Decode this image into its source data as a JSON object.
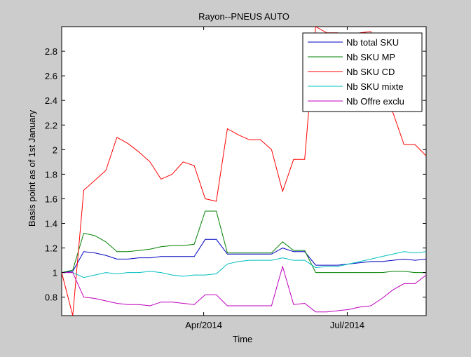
{
  "chart_data": {
    "type": "line",
    "title": "Rayon--PNEUS AUTO",
    "xlabel": "Time",
    "ylabel": "Basis point as of 1st January",
    "x_ticks": [
      "Apr/2014",
      "Jul/2014"
    ],
    "y_ticks": [
      "0.8",
      "1",
      "1.2",
      "1.4",
      "1.6",
      "1.8",
      "2",
      "2.2",
      "2.4",
      "2.6",
      "2.8"
    ],
    "ylim": [
      0.65,
      3.0
    ],
    "grid": false,
    "legend_position": "top-right",
    "x_dates": [
      "2014-01-01",
      "2014-01-08",
      "2014-01-15",
      "2014-01-22",
      "2014-01-29",
      "2014-02-05",
      "2014-02-12",
      "2014-02-19",
      "2014-02-26",
      "2014-03-05",
      "2014-03-12",
      "2014-03-19",
      "2014-03-26",
      "2014-04-02",
      "2014-04-09",
      "2014-04-16",
      "2014-04-23",
      "2014-04-30",
      "2014-05-07",
      "2014-05-14",
      "2014-05-21",
      "2014-05-28",
      "2014-06-04",
      "2014-06-11",
      "2014-06-18",
      "2014-06-25",
      "2014-07-02",
      "2014-07-09",
      "2014-07-16",
      "2014-07-23",
      "2014-07-30",
      "2014-08-06",
      "2014-08-13",
      "2014-08-20"
    ],
    "series": [
      {
        "name": "Nb total SKU",
        "color": "#0000bf",
        "values": [
          1.0,
          1.01,
          1.17,
          1.16,
          1.14,
          1.11,
          1.11,
          1.12,
          1.12,
          1.13,
          1.13,
          1.13,
          1.13,
          1.27,
          1.27,
          1.15,
          1.15,
          1.15,
          1.15,
          1.15,
          1.2,
          1.17,
          1.17,
          1.06,
          1.06,
          1.06,
          1.07,
          1.08,
          1.09,
          1.09,
          1.1,
          1.11,
          1.1,
          1.11
        ]
      },
      {
        "name": "Nb SKU MP",
        "color": "#008000",
        "values": [
          1.0,
          1.02,
          1.32,
          1.3,
          1.25,
          1.17,
          1.17,
          1.18,
          1.19,
          1.21,
          1.22,
          1.22,
          1.23,
          1.5,
          1.5,
          1.16,
          1.16,
          1.16,
          1.16,
          1.16,
          1.25,
          1.18,
          1.18,
          1.0,
          1.0,
          1.0,
          1.0,
          1.0,
          1.0,
          1.0,
          1.01,
          1.01,
          1.0,
          1.0
        ]
      },
      {
        "name": "Nb SKU CD",
        "color": "#ff0000",
        "values": [
          1.0,
          0.65,
          1.67,
          1.75,
          1.83,
          2.1,
          2.05,
          1.98,
          1.9,
          1.76,
          1.8,
          1.9,
          1.87,
          1.6,
          1.58,
          2.17,
          2.12,
          2.08,
          2.08,
          2.0,
          1.66,
          1.92,
          1.92,
          3.0,
          2.95,
          2.95,
          2.92,
          2.95,
          2.96,
          2.45,
          2.3,
          2.04,
          2.04,
          1.95
        ]
      },
      {
        "name": "Nb SKU mixte",
        "color": "#00bfbf",
        "values": [
          1.0,
          1.0,
          0.96,
          0.98,
          1.0,
          0.99,
          1.0,
          1.0,
          1.01,
          1.0,
          0.98,
          0.97,
          0.98,
          0.98,
          0.99,
          1.07,
          1.09,
          1.1,
          1.1,
          1.1,
          1.12,
          1.1,
          1.1,
          1.04,
          1.05,
          1.05,
          1.07,
          1.09,
          1.11,
          1.13,
          1.15,
          1.17,
          1.16,
          1.17
        ]
      },
      {
        "name": "Nb Offre exclu",
        "color": "#bf00bf",
        "values": [
          1.0,
          1.0,
          0.8,
          0.79,
          0.77,
          0.75,
          0.74,
          0.74,
          0.73,
          0.76,
          0.76,
          0.75,
          0.74,
          0.82,
          0.82,
          0.73,
          0.73,
          0.73,
          0.73,
          0.73,
          1.05,
          0.74,
          0.75,
          0.68,
          0.68,
          0.69,
          0.7,
          0.72,
          0.73,
          0.79,
          0.86,
          0.91,
          0.91,
          0.98
        ]
      }
    ]
  }
}
